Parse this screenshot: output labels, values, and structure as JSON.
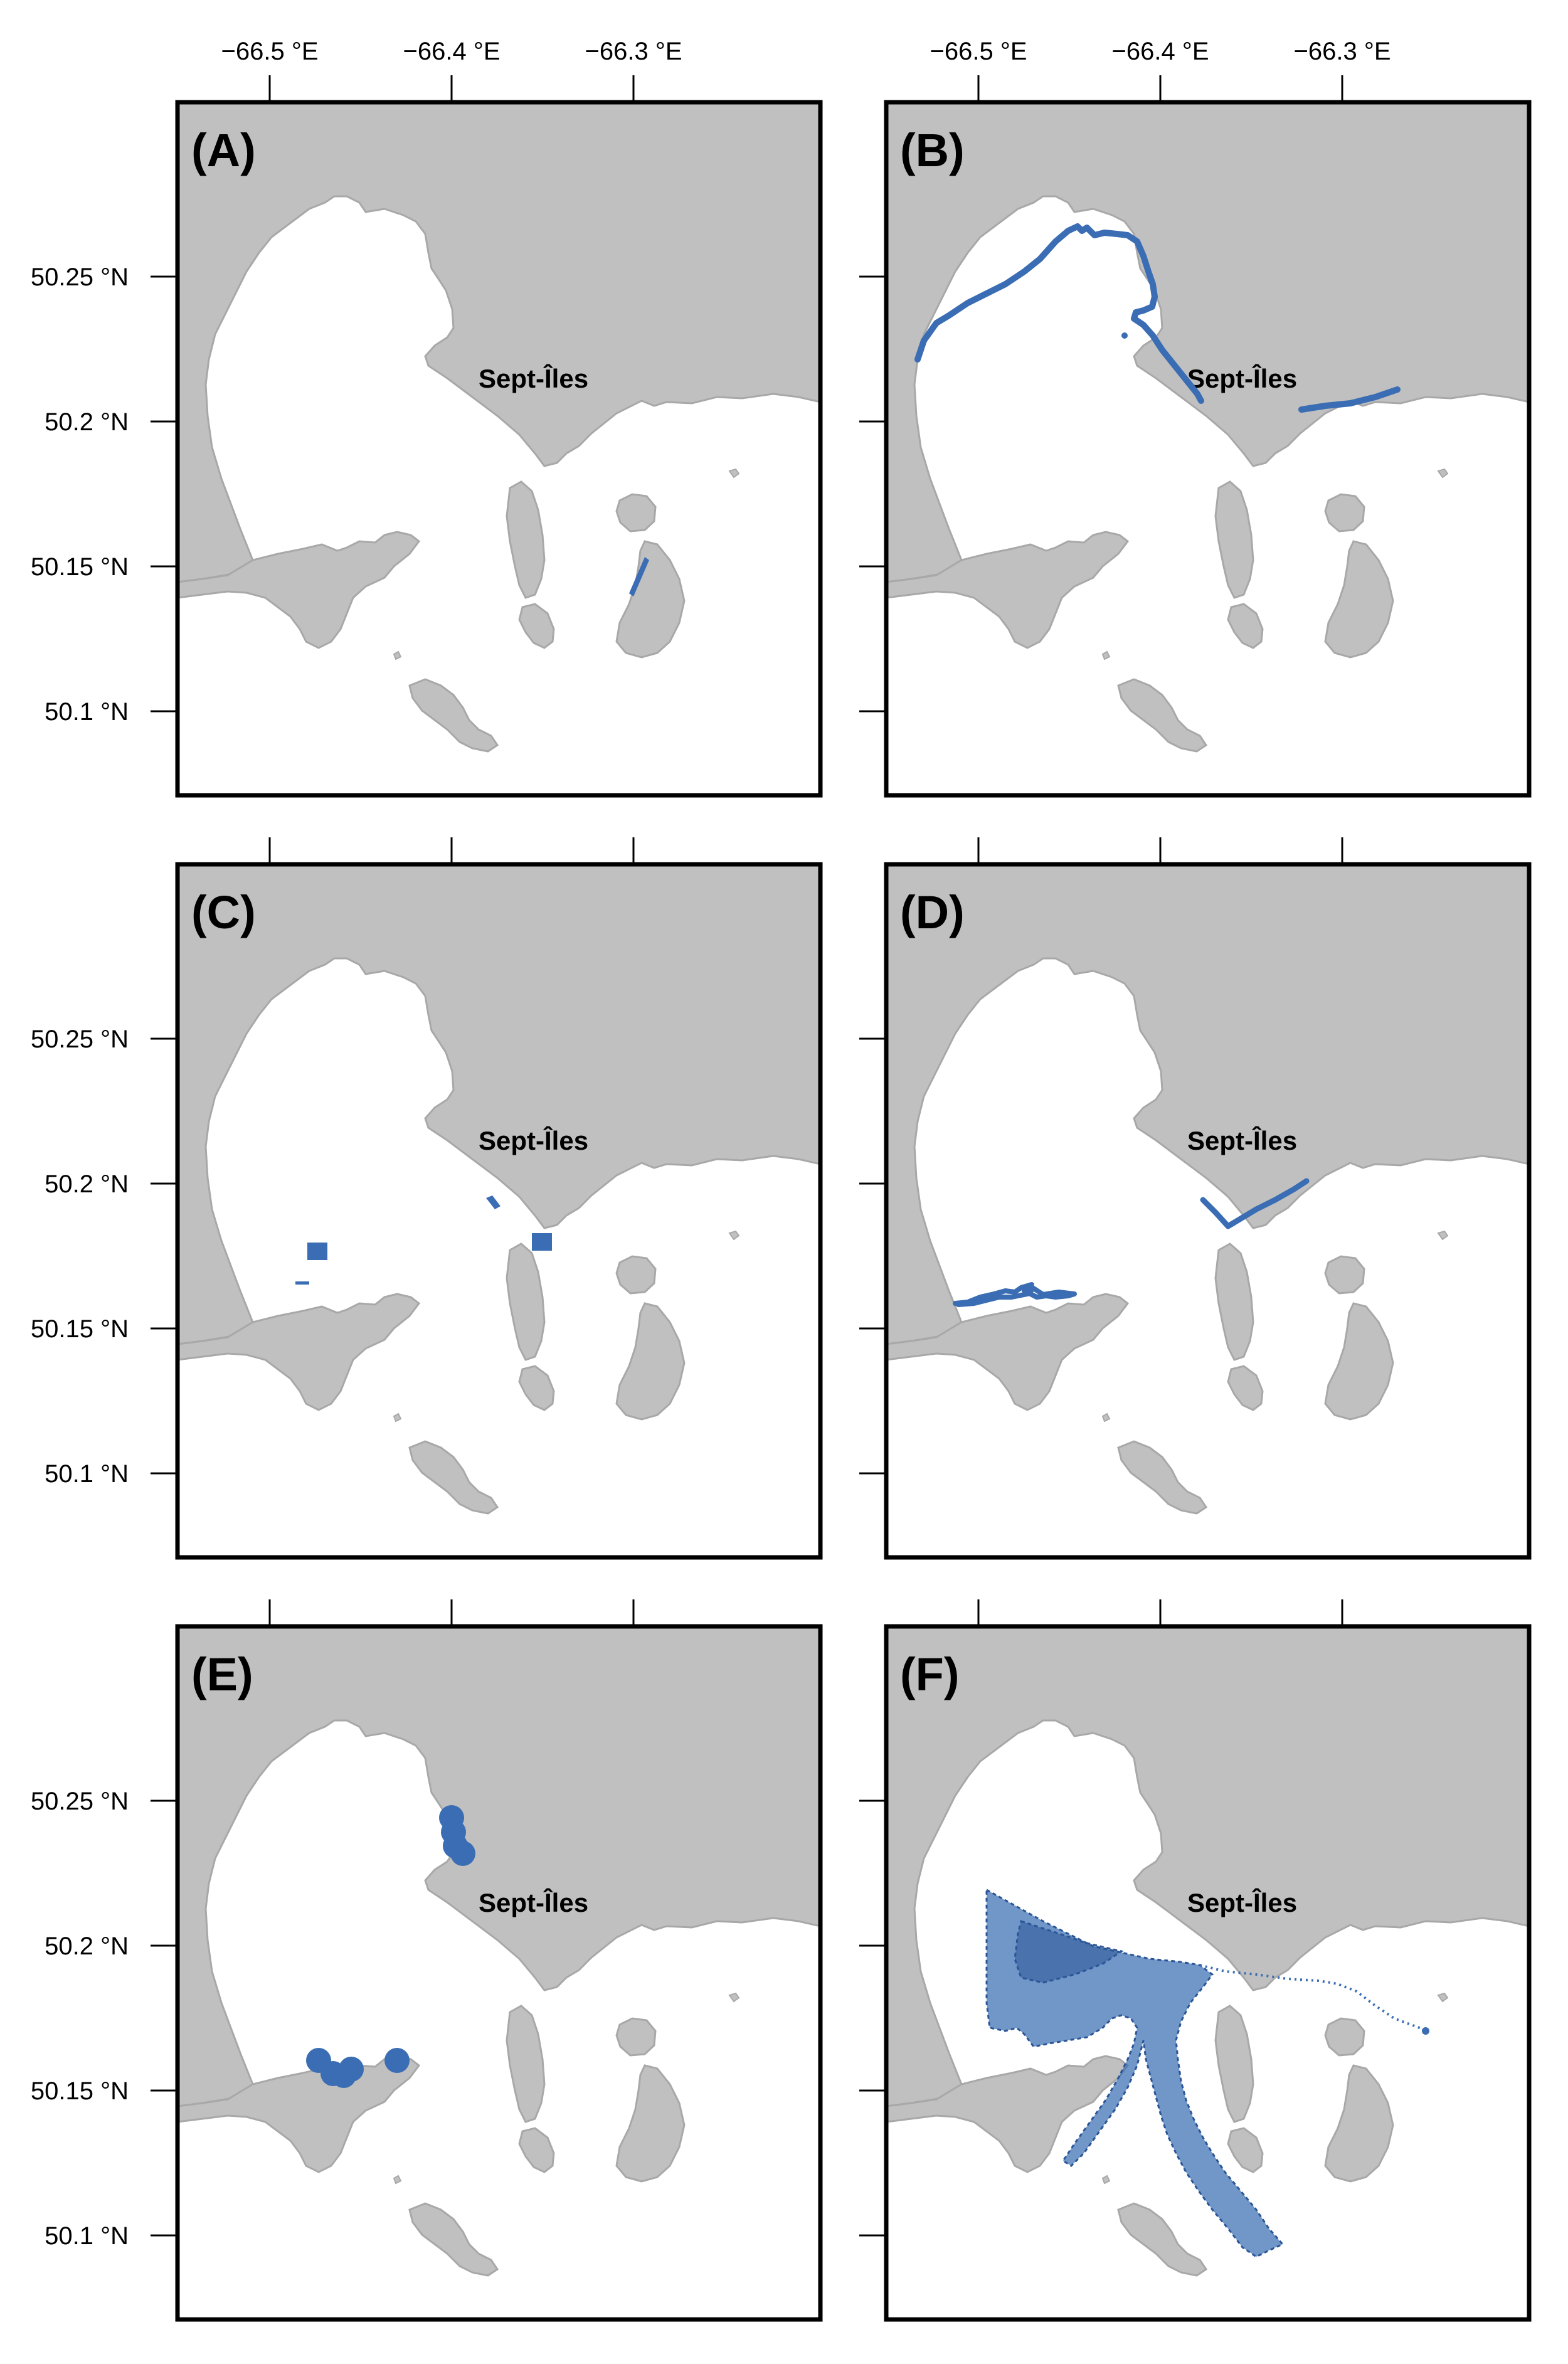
{
  "figure": {
    "lon_ticks": [
      "−66.5 °E",
      "−66.4 °E",
      "−66.3 °E"
    ],
    "lat_ticks": [
      "50.25 °N",
      "50.2 °N",
      "50.15 °N",
      "50.1 °N"
    ],
    "place_name": "Sept-Îles",
    "colors": {
      "land": "#c0c0c0",
      "coast": "#a8a8a8",
      "feature": "#3a6db3",
      "frame": "#000000"
    }
  },
  "panels": [
    {
      "label": "(A)",
      "feature": "small polygon near east island"
    },
    {
      "label": "(B)",
      "feature": "shoreline segments"
    },
    {
      "label": "(C)",
      "feature": "scattered small squares"
    },
    {
      "label": "(D)",
      "feature": "coastline segments"
    },
    {
      "label": "(E)",
      "feature": "point locations"
    },
    {
      "label": "(F)",
      "feature": "large polygon area with dotted track"
    }
  ]
}
